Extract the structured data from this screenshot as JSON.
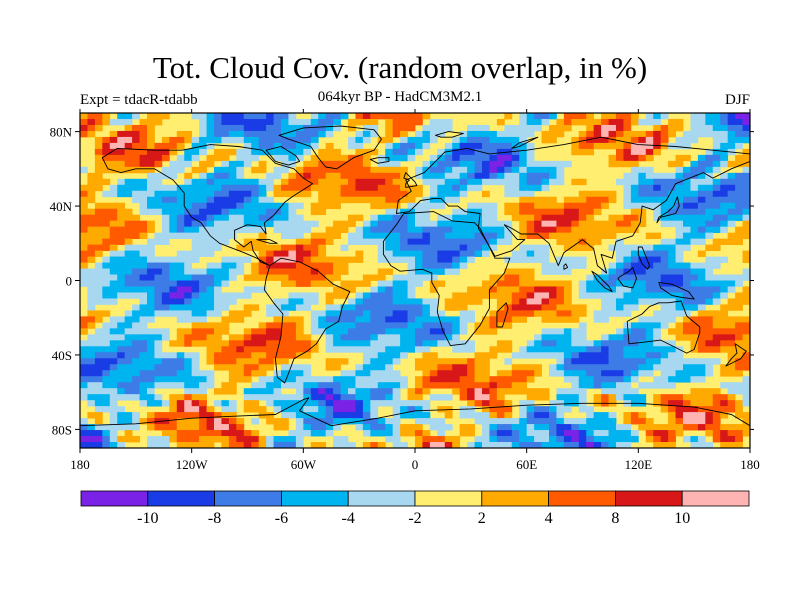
{
  "title": "Tot. Cloud Cov. (random overlap, in %)",
  "subtitle": "064kyr BP - HadCM3M2.1",
  "experiment": "Expt = tdacR-tdabb",
  "season": "DJF",
  "colors": {
    "palette": [
      "#7a22e6",
      "#1a3ce6",
      "#3d7ce6",
      "#00b4f0",
      "#a8d8f0",
      "#ffee70",
      "#ffaa00",
      "#ff5a00",
      "#d81818",
      "#ffb4b4"
    ],
    "land_outline": "#000000",
    "frame": "#000000"
  },
  "map": {
    "x_ticks": [
      {
        "lon": -180,
        "label": "180"
      },
      {
        "lon": -120,
        "label": "120W"
      },
      {
        "lon": -60,
        "label": "60W"
      },
      {
        "lon": 0,
        "label": "0"
      },
      {
        "lon": 60,
        "label": "60E"
      },
      {
        "lon": 120,
        "label": "120E"
      },
      {
        "lon": 180,
        "label": "180"
      }
    ],
    "y_ticks": [
      {
        "lat": 80,
        "label": "80N"
      },
      {
        "lat": 40,
        "label": "40N"
      },
      {
        "lat": 0,
        "label": "0"
      },
      {
        "lat": -40,
        "label": "40S"
      },
      {
        "lat": -80,
        "label": "80S"
      }
    ],
    "lat_range": [
      -90,
      90
    ],
    "lon_range": [
      -180,
      180
    ]
  },
  "colorbar": {
    "labels": [
      "-10",
      "-8",
      "-6",
      "-4",
      "-2",
      "2",
      "4",
      "8",
      "10"
    ]
  }
}
